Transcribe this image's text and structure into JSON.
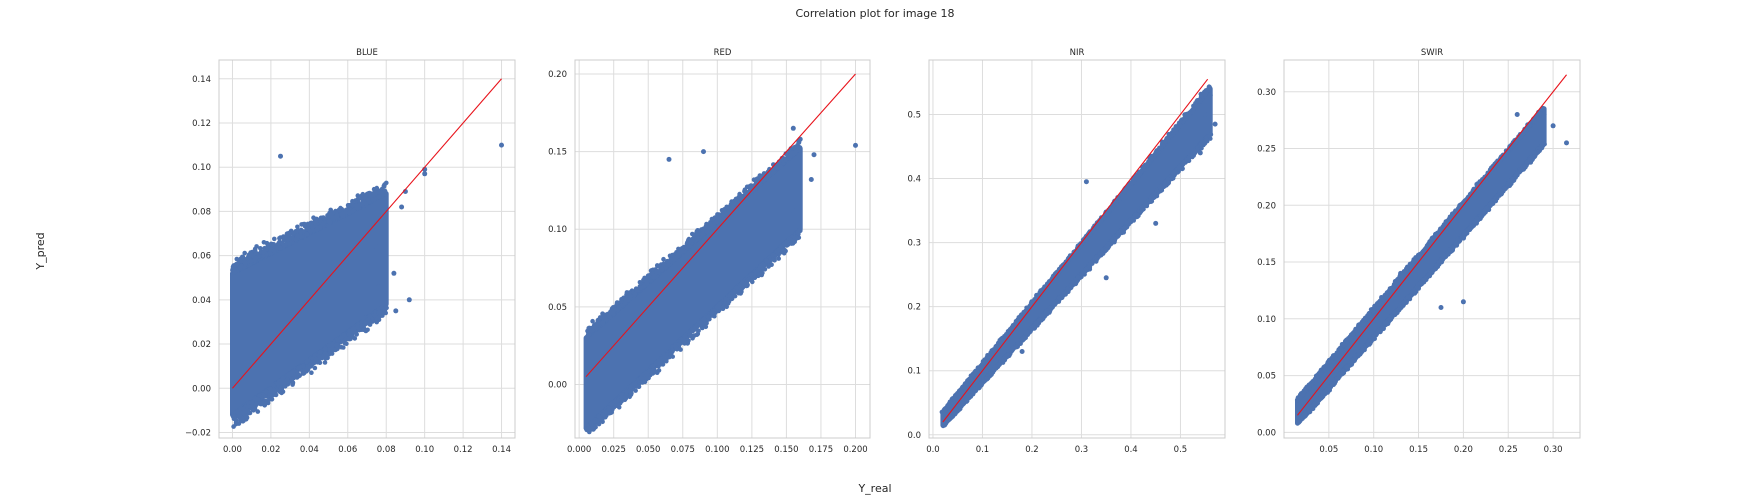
{
  "figure": {
    "title": "Correlation plot for image 18",
    "xlabel": "Y_real",
    "ylabel": "Y_pred"
  },
  "colors": {
    "points": "#4c72b0",
    "fit_line": "#e8131b",
    "grid": "#dddddd",
    "axes_edge": "#cccccc"
  },
  "chart_data": [
    {
      "type": "scatter",
      "title": "BLUE",
      "xlim": [
        -0.007,
        0.147
      ],
      "ylim": [
        -0.0225,
        0.1485
      ],
      "xticks": [
        0.0,
        0.02,
        0.04,
        0.06,
        0.08,
        0.1,
        0.12,
        0.14
      ],
      "yticks": [
        -0.02,
        0.0,
        0.02,
        0.04,
        0.06,
        0.08,
        0.1,
        0.12,
        0.14
      ],
      "tick_decimals": 2,
      "grid": true,
      "identity_line": [
        [
          0.0,
          0.0
        ],
        [
          0.14,
          0.14
        ]
      ],
      "cloud": {
        "x_min": 0.0,
        "x_max": 0.08,
        "y_at_min": [
          -0.012,
          0.052
        ],
        "y_at_max": [
          0.038,
          0.088
        ],
        "n_points": 1500
      },
      "outliers": [
        [
          0.025,
          0.105
        ],
        [
          0.14,
          0.11
        ],
        [
          0.1,
          0.099
        ],
        [
          0.1,
          0.097
        ],
        [
          0.09,
          0.089
        ],
        [
          0.092,
          0.04
        ],
        [
          0.085,
          0.035
        ],
        [
          0.078,
          0.038
        ],
        [
          0.076,
          0.046
        ],
        [
          0.084,
          0.052
        ],
        [
          0.063,
          0.027
        ],
        [
          0.058,
          0.024
        ],
        [
          0.075,
          0.064
        ],
        [
          0.078,
          0.062
        ],
        [
          0.07,
          0.045
        ],
        [
          0.068,
          0.032
        ],
        [
          0.072,
          0.055
        ],
        [
          0.088,
          0.082
        ]
      ]
    },
    {
      "type": "scatter",
      "title": "RED",
      "xlim": [
        -0.003,
        0.2105
      ],
      "ylim": [
        -0.0345,
        0.209
      ],
      "xticks": [
        0.0,
        0.025,
        0.05,
        0.075,
        0.1,
        0.125,
        0.15,
        0.175,
        0.2
      ],
      "yticks": [
        0.0,
        0.05,
        0.1,
        0.15,
        0.2
      ],
      "tick_decimals_x": 3,
      "tick_decimals_y": 2,
      "grid": true,
      "identity_line": [
        [
          0.005,
          0.005
        ],
        [
          0.2,
          0.2
        ]
      ],
      "cloud": {
        "x_min": 0.005,
        "x_max": 0.16,
        "y_at_min": [
          -0.028,
          0.03
        ],
        "y_at_max": [
          0.1,
          0.152
        ],
        "n_points": 1800
      },
      "outliers": [
        [
          0.2,
          0.154
        ],
        [
          0.155,
          0.165
        ],
        [
          0.16,
          0.158
        ],
        [
          0.065,
          0.145
        ],
        [
          0.09,
          0.15
        ],
        [
          0.155,
          0.112
        ],
        [
          0.17,
          0.148
        ],
        [
          0.168,
          0.132
        ]
      ]
    },
    {
      "type": "scatter",
      "title": "NIR",
      "xlim": [
        -0.008,
        0.59
      ],
      "ylim": [
        -0.005,
        0.585
      ],
      "xticks": [
        0.0,
        0.1,
        0.2,
        0.3,
        0.4,
        0.5
      ],
      "yticks": [
        0.0,
        0.1,
        0.2,
        0.3,
        0.4,
        0.5
      ],
      "tick_decimals": 1,
      "grid": true,
      "identity_line": [
        [
          0.02,
          0.02
        ],
        [
          0.555,
          0.555
        ]
      ],
      "cloud": {
        "x_min": 0.02,
        "x_max": 0.56,
        "y_at_min": [
          0.015,
          0.035
        ],
        "y_at_max": [
          0.47,
          0.54
        ],
        "n_points": 1800
      },
      "outliers": [
        [
          0.57,
          0.485
        ],
        [
          0.35,
          0.245
        ],
        [
          0.45,
          0.33
        ],
        [
          0.18,
          0.13
        ],
        [
          0.55,
          0.5
        ],
        [
          0.56,
          0.53
        ],
        [
          0.31,
          0.395
        ],
        [
          0.54,
          0.44
        ]
      ]
    },
    {
      "type": "scatter",
      "title": "SWIR",
      "xlim": [
        0.0,
        0.33
      ],
      "ylim": [
        -0.005,
        0.328
      ],
      "xticks": [
        0.05,
        0.1,
        0.15,
        0.2,
        0.25,
        0.3
      ],
      "yticks": [
        0.0,
        0.05,
        0.1,
        0.15,
        0.2,
        0.25,
        0.3
      ],
      "tick_decimals": 2,
      "grid": true,
      "identity_line": [
        [
          0.015,
          0.015
        ],
        [
          0.315,
          0.315
        ]
      ],
      "cloud": {
        "x_min": 0.015,
        "x_max": 0.29,
        "y_at_min": [
          0.008,
          0.028
        ],
        "y_at_max": [
          0.255,
          0.285
        ],
        "n_points": 1800
      },
      "outliers": [
        [
          0.315,
          0.255
        ],
        [
          0.2,
          0.115
        ],
        [
          0.175,
          0.11
        ],
        [
          0.13,
          0.14
        ],
        [
          0.26,
          0.28
        ],
        [
          0.29,
          0.28
        ],
        [
          0.3,
          0.27
        ],
        [
          0.22,
          0.19
        ]
      ]
    }
  ]
}
